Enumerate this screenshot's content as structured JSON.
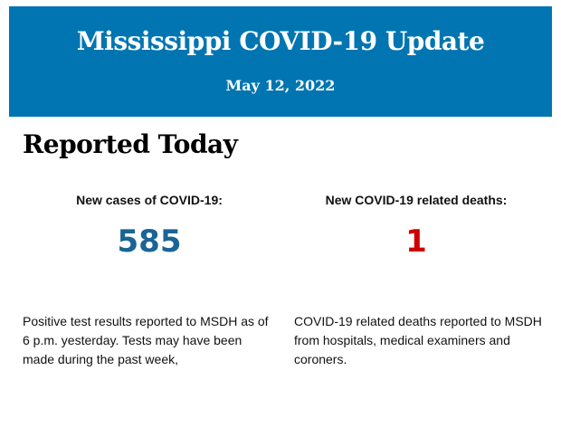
{
  "header": {
    "title": "Mississippi COVID-19 Update",
    "date": "May 12, 2022",
    "color": "#0075b1"
  },
  "section": {
    "heading": "Reported Today"
  },
  "cases": {
    "label": "New cases of COVID-19:",
    "value": "585",
    "color": "#1a6496",
    "description": "Positive test results reported to MSDH as of 6 p.m. yesterday. Tests may have been made during the past week,"
  },
  "deaths": {
    "label": "New COVID-19 related deaths:",
    "value": "1",
    "color": "#cc0000",
    "description": "COVID-19 related deaths reported to MSDH from hospitals, medical examiners and coroners."
  }
}
